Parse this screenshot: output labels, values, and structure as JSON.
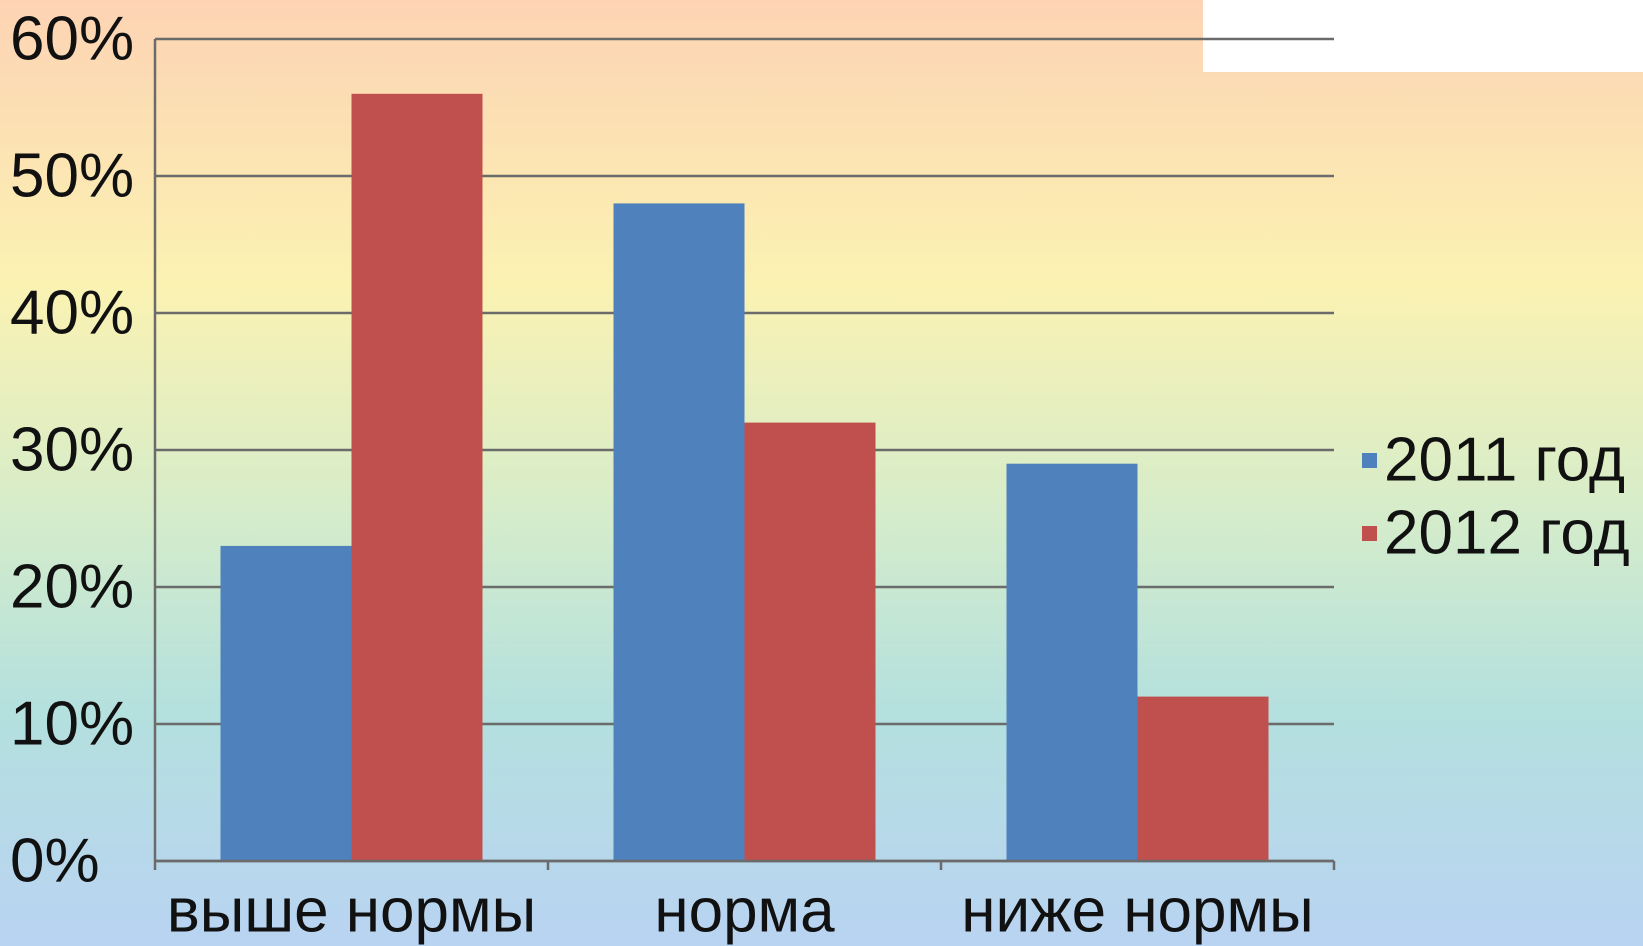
{
  "chart_data": {
    "type": "bar",
    "categories": [
      "выше нормы",
      "норма",
      "ниже нормы"
    ],
    "series": [
      {
        "name": "2011 год",
        "color": "#4f81bd",
        "values": [
          23,
          48,
          29
        ]
      },
      {
        "name": "2012 год",
        "color": "#c0504d",
        "values": [
          56,
          32,
          12
        ]
      }
    ],
    "ylim": [
      0,
      60
    ],
    "yticks": [
      {
        "value": 0,
        "label": "0%"
      },
      {
        "value": 10,
        "label": "10%"
      },
      {
        "value": 20,
        "label": "20%"
      },
      {
        "value": 30,
        "label": "30%"
      },
      {
        "value": 40,
        "label": "40%"
      },
      {
        "value": 50,
        "label": "50%"
      },
      {
        "value": 60,
        "label": "60%"
      }
    ],
    "grid": true,
    "legend": "right"
  }
}
